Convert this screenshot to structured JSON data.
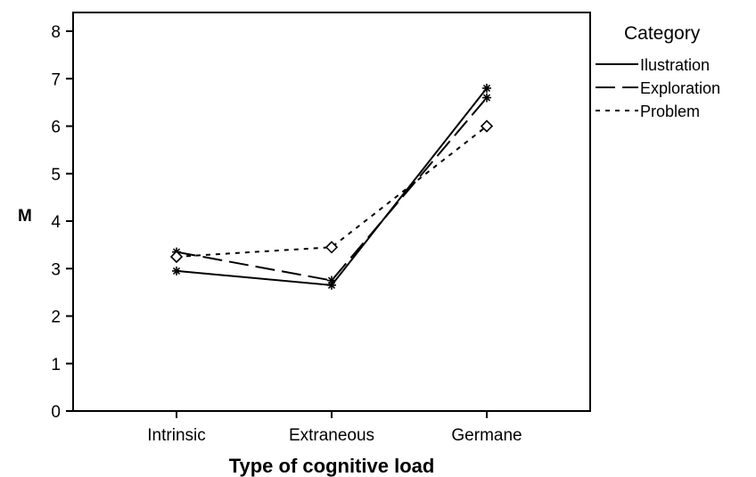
{
  "chart_data": {
    "type": "line",
    "xlabel": "Type of cognitive load",
    "ylabel": "M",
    "categories": [
      "Intrinsic",
      "Extraneous",
      "Germane"
    ],
    "ylim": [
      0,
      8
    ],
    "yticks": [
      0,
      1,
      2,
      3,
      4,
      5,
      6,
      7,
      8
    ],
    "grid": false,
    "legend": {
      "title": "Category",
      "placement": "right"
    },
    "series": [
      {
        "name": "Ilustration",
        "values": [
          2.95,
          2.65,
          6.8
        ],
        "line_style": "solid",
        "marker": "star",
        "color": "#000000"
      },
      {
        "name": "Exploration",
        "values": [
          3.35,
          2.75,
          6.6
        ],
        "line_style": "long-dash",
        "marker": "star",
        "color": "#000000"
      },
      {
        "name": "Problem",
        "values": [
          3.25,
          3.45,
          6.0
        ],
        "line_style": "dotted",
        "marker": "diamond",
        "color": "#000000"
      }
    ]
  }
}
